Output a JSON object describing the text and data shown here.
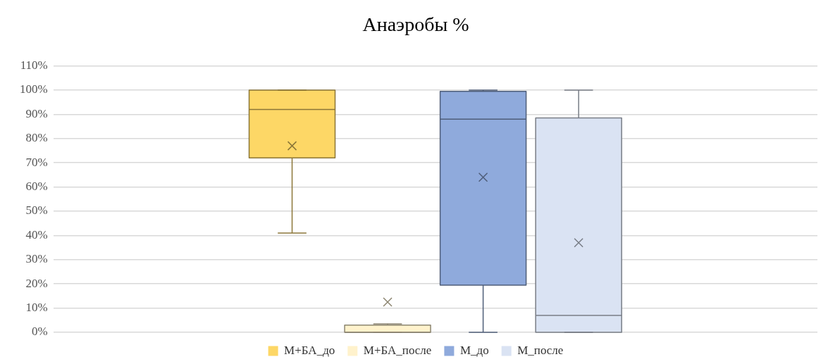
{
  "chart_data": {
    "type": "box",
    "title": "Анаэробы %",
    "categories": [
      null
    ],
    "series": [
      {
        "name": "М+БА_до",
        "color": "#fdd766",
        "boxes": [
          {
            "low": 41,
            "q1": 72,
            "median": 92,
            "q3": 100,
            "high": 100,
            "mean": 77
          }
        ]
      },
      {
        "name": "М+БА_после",
        "color": "#fff2cc",
        "boxes": [
          {
            "low": 0,
            "q1": 0,
            "median": 0,
            "q3": 3,
            "high": 3.5,
            "mean": 12.5
          }
        ]
      },
      {
        "name": "М_до",
        "color": "#8faadc",
        "boxes": [
          {
            "low": 0,
            "q1": 19.5,
            "median": 88,
            "q3": 99.5,
            "high": 100,
            "mean": 64
          }
        ]
      },
      {
        "name": "М_после",
        "color": "#dae3f3",
        "boxes": [
          {
            "low": 0,
            "q1": 0,
            "median": 7,
            "q3": 88.5,
            "high": 100,
            "mean": 37
          }
        ]
      }
    ],
    "ylim": [
      0,
      110
    ],
    "yticks": [
      {
        "value": 0,
        "label": "0%"
      },
      {
        "value": 10,
        "label": "10%"
      },
      {
        "value": 20,
        "label": "20%"
      },
      {
        "value": 30,
        "label": "30%"
      },
      {
        "value": 40,
        "label": "40%"
      },
      {
        "value": 50,
        "label": "50%"
      },
      {
        "value": 60,
        "label": "60%"
      },
      {
        "value": 70,
        "label": "70%"
      },
      {
        "value": 80,
        "label": "80%"
      },
      {
        "value": 90,
        "label": "90%"
      },
      {
        "value": 100,
        "label": "100%"
      },
      {
        "value": 110,
        "label": "110%"
      }
    ],
    "grid": "y",
    "legend": "bottom",
    "marker": "cross"
  }
}
